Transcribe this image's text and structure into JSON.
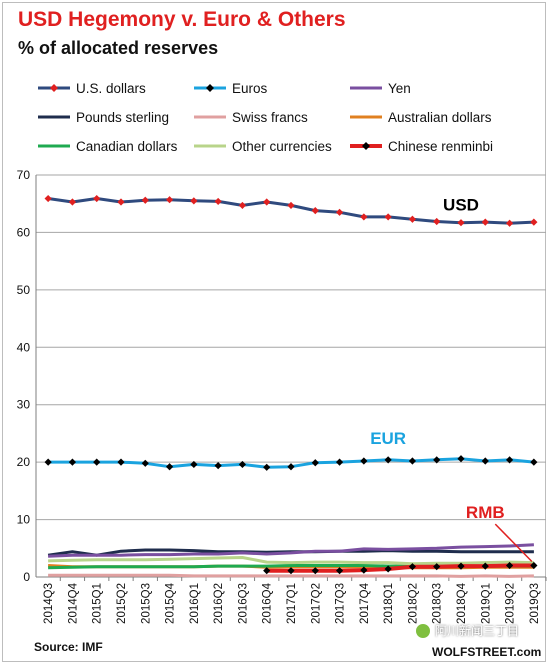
{
  "chart_data": {
    "type": "line",
    "title": "USD Hegemony v. Euro & Others",
    "subtitle": "% of allocated reserves",
    "categories": [
      "2014Q3",
      "2014Q4",
      "2015Q1",
      "2015Q2",
      "2015Q3",
      "2015Q4",
      "2016Q1",
      "2016Q2",
      "2016Q3",
      "2016Q4",
      "2017Q1",
      "2017Q2",
      "2017Q3",
      "2017Q4",
      "2018Q1",
      "2018Q2",
      "2018Q3",
      "2018Q4",
      "2019Q1",
      "2019Q2",
      "2019Q3"
    ],
    "ylim": [
      0,
      70
    ],
    "yticks": [
      "0",
      "10",
      "20",
      "30",
      "40",
      "50",
      "60",
      "70"
    ],
    "grid": true,
    "legend_position": "top",
    "series": [
      {
        "name": "U.S. dollars",
        "color": "#2f4a7e",
        "marker": "diamond",
        "marker_color": "#e02020",
        "width": 3,
        "values": [
          65.9,
          65.3,
          65.9,
          65.3,
          65.6,
          65.7,
          65.5,
          65.4,
          64.7,
          65.3,
          64.7,
          63.8,
          63.5,
          62.7,
          62.7,
          62.3,
          61.9,
          61.7,
          61.8,
          61.6,
          61.8
        ]
      },
      {
        "name": "Euros",
        "color": "#1aa3df",
        "marker": "diamond",
        "marker_color": "#000000",
        "width": 3,
        "values": [
          20.0,
          20.0,
          20.0,
          20.0,
          19.8,
          19.2,
          19.6,
          19.4,
          19.6,
          19.1,
          19.2,
          19.9,
          20.0,
          20.2,
          20.4,
          20.2,
          20.4,
          20.6,
          20.2,
          20.4,
          20.0
        ]
      },
      {
        "name": "Yen",
        "color": "#7a4fa0",
        "marker": "none",
        "width": 3,
        "values": [
          3.6,
          3.8,
          3.8,
          3.8,
          3.9,
          3.9,
          4.0,
          4.0,
          4.2,
          4.0,
          4.2,
          4.5,
          4.5,
          4.9,
          4.8,
          4.9,
          5.0,
          5.2,
          5.3,
          5.4,
          5.6
        ]
      },
      {
        "name": "Pounds sterling",
        "color": "#1f2d4d",
        "marker": "none",
        "width": 3,
        "values": [
          3.8,
          4.4,
          3.8,
          4.5,
          4.7,
          4.7,
          4.6,
          4.4,
          4.4,
          4.3,
          4.4,
          4.4,
          4.5,
          4.5,
          4.6,
          4.5,
          4.5,
          4.4,
          4.4,
          4.4,
          4.4
        ]
      },
      {
        "name": "Swiss francs",
        "color": "#e0a0a0",
        "marker": "none",
        "width": 3,
        "values": [
          0.3,
          0.3,
          0.3,
          0.3,
          0.3,
          0.3,
          0.2,
          0.2,
          0.2,
          0.2,
          0.2,
          0.2,
          0.2,
          0.2,
          0.2,
          0.2,
          0.2,
          0.1,
          0.2,
          0.1,
          0.2
        ]
      },
      {
        "name": "Australian dollars",
        "color": "#e08020",
        "marker": "none",
        "width": 3,
        "values": [
          2.0,
          1.8,
          1.8,
          1.8,
          1.8,
          1.8,
          1.8,
          1.9,
          1.9,
          1.7,
          1.8,
          1.8,
          1.8,
          1.8,
          1.7,
          1.6,
          1.6,
          1.6,
          1.7,
          1.7,
          1.7
        ]
      },
      {
        "name": "Canadian dollars",
        "color": "#1faa50",
        "marker": "none",
        "width": 3,
        "values": [
          1.6,
          1.7,
          1.8,
          1.8,
          1.8,
          1.8,
          1.8,
          1.9,
          1.9,
          1.9,
          2.0,
          2.0,
          2.0,
          2.0,
          1.9,
          1.9,
          1.9,
          1.8,
          1.9,
          1.9,
          1.9
        ]
      },
      {
        "name": "Other currencies",
        "color": "#b8d48a",
        "marker": "none",
        "width": 3,
        "values": [
          2.8,
          2.9,
          3.0,
          3.0,
          3.0,
          3.1,
          3.2,
          3.3,
          3.4,
          2.6,
          2.5,
          2.6,
          2.6,
          2.5,
          2.5,
          2.3,
          2.4,
          2.4,
          2.5,
          2.6,
          2.5
        ]
      },
      {
        "name": "Chinese renminbi",
        "color": "#e02020",
        "marker": "diamond",
        "marker_color": "#000000",
        "width": 4,
        "start_index": 9,
        "values": [
          null,
          null,
          null,
          null,
          null,
          null,
          null,
          null,
          null,
          1.1,
          1.1,
          1.1,
          1.1,
          1.2,
          1.4,
          1.8,
          1.8,
          1.9,
          1.9,
          2.0,
          2.0
        ]
      }
    ],
    "annotations": [
      {
        "text": "USD",
        "color": "#000000"
      },
      {
        "text": "EUR",
        "color": "#1aa3df"
      },
      {
        "text": "RMB",
        "color": "#e02020"
      }
    ],
    "source": "Source: IMF",
    "credit": "WOLFSTREET.com",
    "watermark": "阿川新闻三丁目"
  }
}
